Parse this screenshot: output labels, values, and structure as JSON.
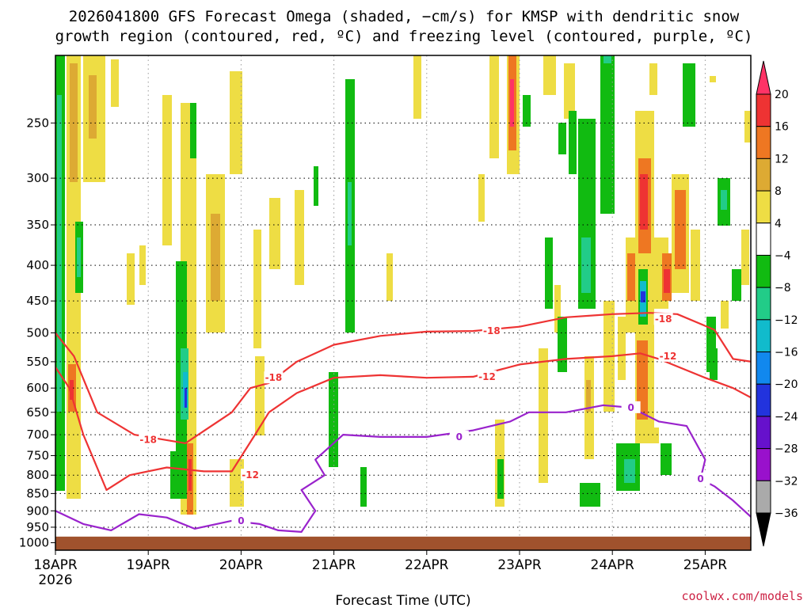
{
  "chart_data": {
    "type": "heatmap",
    "title_line1": "2026041800 GFS Forecast Omega (shaded, −cm/s) for KMSP with dendritic snow",
    "title_line2": "growth region (contoured, red, ºC) and freezing level (contoured, purple, ºC)",
    "xlabel": "Forecast Time (UTC)",
    "x_start_label": "18APR",
    "x_start_year": "2026",
    "x_ticks": [
      "18APR",
      "19APR",
      "20APR",
      "21APR",
      "22APR",
      "23APR",
      "24APR",
      "25APR"
    ],
    "x_range_days": [
      0,
      7.5
    ],
    "y_ticks": [
      250,
      300,
      350,
      400,
      450,
      500,
      550,
      600,
      650,
      700,
      750,
      800,
      850,
      900,
      950,
      1000
    ],
    "y_range_hpa": [
      200,
      1025
    ],
    "terrain_top_hpa": 980,
    "colorbar": {
      "labels": [
        "20",
        "16",
        "12",
        "8",
        "4",
        "−4",
        "−8",
        "−12",
        "−16",
        "−20",
        "−24",
        "−28",
        "−32",
        "−36"
      ],
      "colors": [
        "#ff3366",
        "#ee3333",
        "#ee7722",
        "#ddaa33",
        "#eedd44",
        "#ffffff",
        "#11bb11",
        "#22cc88",
        "#11bbcc",
        "#1188ee",
        "#2233dd",
        "#6611cc",
        "#9911cc",
        "#aaaaaa",
        "#000000"
      ]
    },
    "contours": [
      {
        "name": "dendritic-top",
        "level": -18,
        "color": "#ee3333",
        "points": [
          [
            0,
            500
          ],
          [
            0.2,
            540
          ],
          [
            0.45,
            650
          ],
          [
            0.85,
            700
          ],
          [
            1.4,
            720
          ],
          [
            1.9,
            650
          ],
          [
            2.1,
            600
          ],
          [
            2.3,
            590
          ],
          [
            2.6,
            550
          ],
          [
            3.0,
            520
          ],
          [
            3.5,
            505
          ],
          [
            4.0,
            498
          ],
          [
            4.5,
            497
          ],
          [
            5.0,
            490
          ],
          [
            5.5,
            475
          ],
          [
            6.0,
            470
          ],
          [
            6.4,
            468
          ],
          [
            6.7,
            470
          ],
          [
            7.1,
            495
          ],
          [
            7.3,
            545
          ],
          [
            7.5,
            550
          ]
        ],
        "labels": [
          {
            "x": 1.0,
            "p": 712,
            "text": "-18"
          },
          {
            "x": 2.35,
            "p": 580,
            "text": "-18"
          },
          {
            "x": 4.7,
            "p": 497,
            "text": "-18"
          },
          {
            "x": 6.55,
            "p": 478,
            "text": "-18"
          }
        ]
      },
      {
        "name": "dendritic-bottom",
        "level": -12,
        "color": "#ee3333",
        "points": [
          [
            0,
            560
          ],
          [
            0.15,
            600
          ],
          [
            0.3,
            700
          ],
          [
            0.55,
            840
          ],
          [
            0.8,
            800
          ],
          [
            1.2,
            780
          ],
          [
            1.6,
            790
          ],
          [
            1.9,
            790
          ],
          [
            2.15,
            700
          ],
          [
            2.3,
            650
          ],
          [
            2.6,
            610
          ],
          [
            3.0,
            580
          ],
          [
            3.5,
            575
          ],
          [
            4.0,
            580
          ],
          [
            4.5,
            578
          ],
          [
            5.0,
            555
          ],
          [
            5.5,
            545
          ],
          [
            6.0,
            540
          ],
          [
            6.3,
            535
          ],
          [
            6.5,
            545
          ],
          [
            7.0,
            580
          ],
          [
            7.3,
            600
          ],
          [
            7.5,
            620
          ]
        ],
        "labels": [
          {
            "x": 2.1,
            "p": 800,
            "text": "-12"
          },
          {
            "x": 4.65,
            "p": 578,
            "text": "-12"
          },
          {
            "x": 6.6,
            "p": 540,
            "text": "-12"
          }
        ]
      },
      {
        "name": "freezing-level",
        "level": 0,
        "color": "#9922cc",
        "points": [
          [
            0,
            900
          ],
          [
            0.3,
            940
          ],
          [
            0.6,
            960
          ],
          [
            0.9,
            910
          ],
          [
            1.2,
            920
          ],
          [
            1.5,
            955
          ],
          [
            1.9,
            930
          ],
          [
            2.2,
            940
          ],
          [
            2.4,
            960
          ],
          [
            2.65,
            965
          ],
          [
            2.8,
            900
          ],
          [
            2.65,
            840
          ],
          [
            2.9,
            800
          ],
          [
            2.8,
            760
          ],
          [
            3.1,
            700
          ],
          [
            3.5,
            705
          ],
          [
            4.0,
            705
          ],
          [
            4.5,
            690
          ],
          [
            4.9,
            670
          ],
          [
            5.1,
            650
          ],
          [
            5.5,
            650
          ],
          [
            5.9,
            635
          ],
          [
            6.2,
            640
          ],
          [
            6.5,
            670
          ],
          [
            6.8,
            680
          ],
          [
            7.0,
            760
          ],
          [
            6.95,
            810
          ],
          [
            7.1,
            830
          ],
          [
            7.3,
            870
          ],
          [
            7.5,
            920
          ]
        ],
        "labels": [
          {
            "x": 2.0,
            "p": 930,
            "text": "0"
          },
          {
            "x": 4.35,
            "p": 705,
            "text": "0"
          },
          {
            "x": 6.2,
            "p": 640,
            "text": "0"
          },
          {
            "x": 6.95,
            "p": 810,
            "text": "0"
          }
        ]
      }
    ]
  },
  "credit": "coolwx.com/models"
}
